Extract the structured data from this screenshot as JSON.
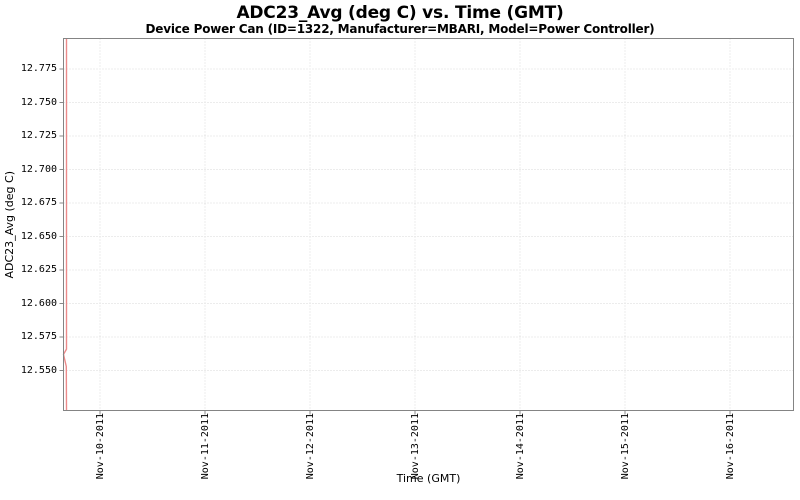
{
  "chart_data": {
    "type": "line",
    "title": "ADC23_Avg (deg C) vs. Time (GMT)",
    "subtitle": "Device Power Can (ID=1322, Manufacturer=MBARI, Model=Power Controller)",
    "xlabel": "Time (GMT)",
    "ylabel": "ADC23_Avg (deg C)",
    "x_tick_labels": [
      "Nov-10-2011",
      "Nov-11-2011",
      "Nov-12-2011",
      "Nov-13-2011",
      "Nov-14-2011",
      "Nov-15-2011",
      "Nov-16-2011"
    ],
    "x_tick_day_offsets": [
      0,
      1,
      2,
      3,
      4,
      5,
      6
    ],
    "y_tick_labels": [
      "12.775",
      "12.750",
      "12.725",
      "12.700",
      "12.675",
      "12.650",
      "12.625",
      "12.600",
      "12.575",
      "12.550"
    ],
    "y_tick_values": [
      12.775,
      12.75,
      12.725,
      12.7,
      12.675,
      12.65,
      12.625,
      12.6,
      12.575,
      12.55
    ],
    "ylim": [
      12.52,
      12.798
    ],
    "xlim_days": [
      -0.348,
      6.605
    ],
    "grid": true,
    "legend": "none",
    "series": [
      {
        "name": "ADC23_Avg",
        "color": "#ec8a8a",
        "description": "All samples lie in a brief window near the chart's left edge (~Nov-09 16:00 GMT); values sweep the full y-range so the trace renders as a vertical spike with a small leftward notch near 12.56 deg C",
        "points": [
          {
            "x_days": -0.319,
            "value": 12.798
          },
          {
            "x_days": -0.319,
            "value": 12.566
          },
          {
            "x_days": -0.3476,
            "value": 12.562
          },
          {
            "x_days": -0.3214,
            "value": 12.553
          },
          {
            "x_days": -0.319,
            "value": 12.5205
          }
        ]
      }
    ],
    "colors": {
      "background": "#ffffff",
      "plot_border": "#848484",
      "grid": "#d9d9d9",
      "tick_mark": "#888888",
      "text": "#000000",
      "series": "#ec8a8a"
    }
  }
}
